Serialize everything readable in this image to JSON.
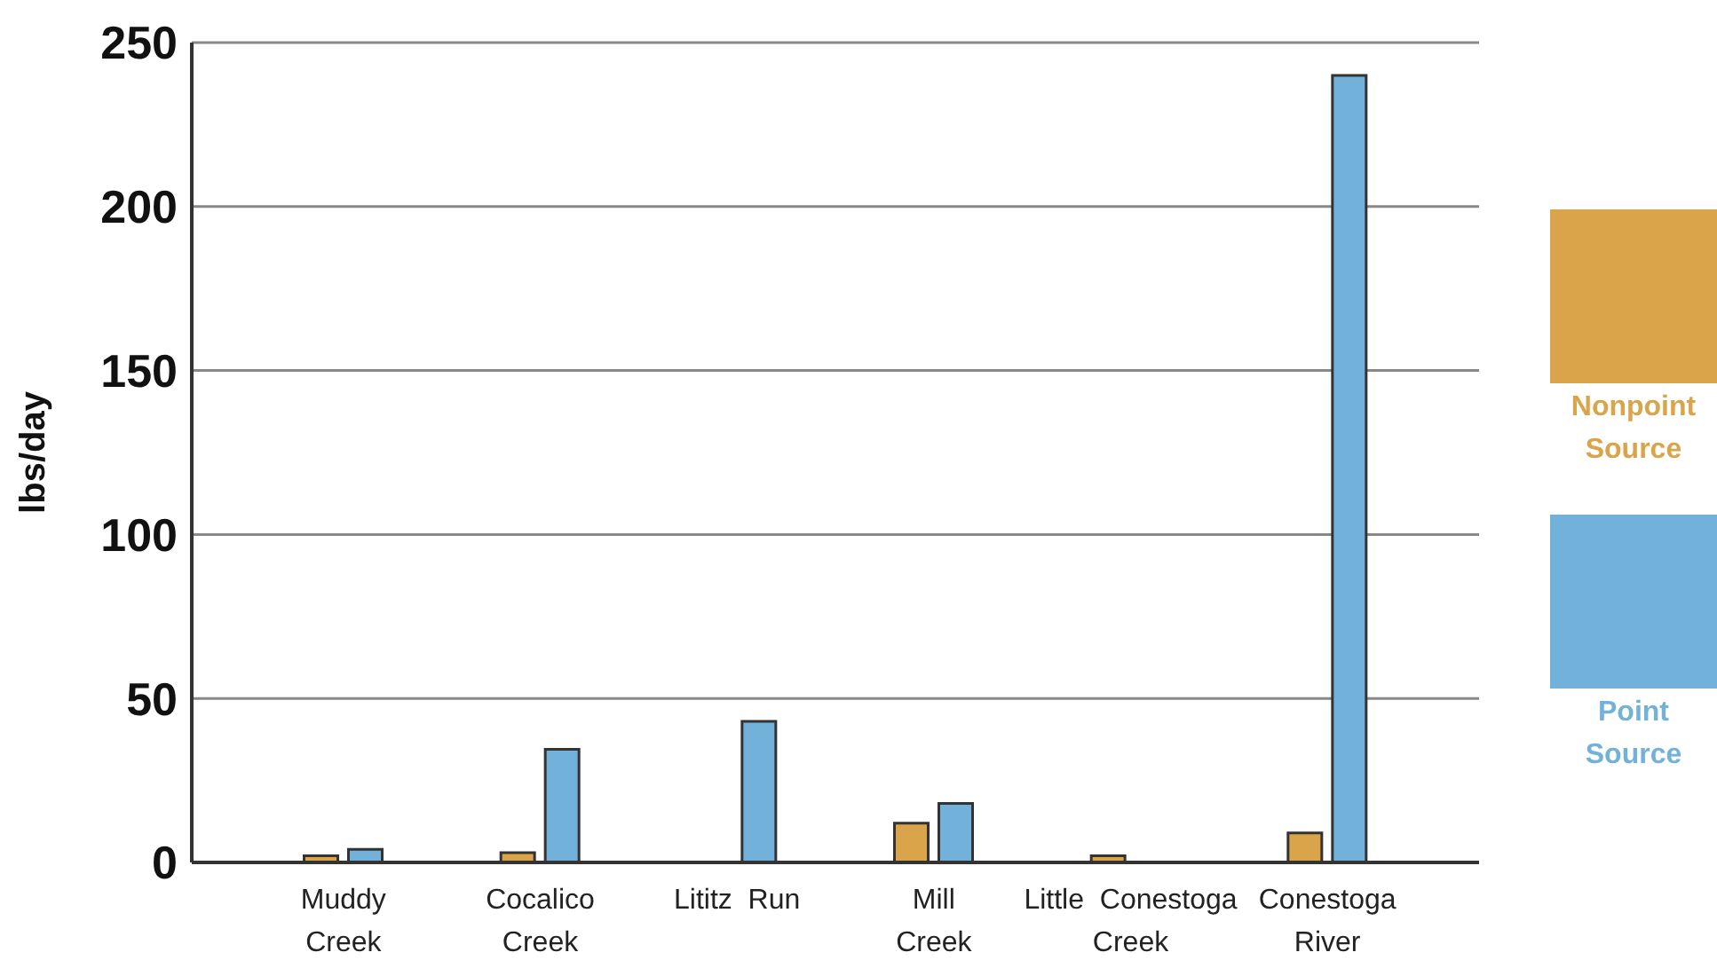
{
  "chart_data": {
    "type": "bar",
    "ylabel": "lbs/day",
    "categories": [
      "Muddy\nCreek",
      "Cocalico\nCreek",
      "Lititz  Run",
      "Mill\nCreek",
      "Little  Conestoga\nCreek",
      "Conestoga\nRiver"
    ],
    "series": [
      {
        "name": "Nonpoint\nSource",
        "color": "#d9a44a",
        "values": [
          2,
          3,
          0,
          12,
          2,
          9
        ]
      },
      {
        "name": "Point\nSource",
        "color": "#72b1d9",
        "values": [
          4,
          34.5,
          43,
          18,
          0,
          240
        ]
      }
    ],
    "ylim": [
      0,
      250
    ],
    "yticks": [
      0,
      50,
      100,
      150,
      200,
      250
    ],
    "grid": "y",
    "legend": "right"
  }
}
